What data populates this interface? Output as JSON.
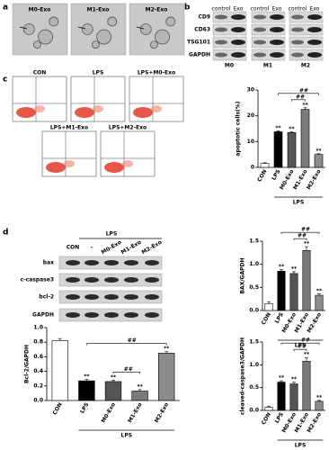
{
  "panels": {
    "a": {
      "letter": "a",
      "labels": [
        "M0-Exo",
        "M1-Exo",
        "M2-Exo"
      ]
    },
    "b": {
      "letter": "b",
      "header": [
        "control",
        "Exo"
      ],
      "rows": [
        "CD9",
        "CD63",
        "TSG101",
        "GAPDH"
      ],
      "groups": [
        "M0",
        "M1",
        "M2"
      ]
    },
    "c": {
      "letter": "c",
      "plots": [
        "CON",
        "LPS",
        "LPS+M0-Exo",
        "LPS+M1-Exo",
        "LPS+M2-Exo"
      ]
    },
    "d": {
      "letter": "d",
      "group": "LPS",
      "lanes": [
        "CON",
        "-",
        "M0-Exo",
        "M1-Exo",
        "M2-Exo"
      ],
      "rows": [
        "bax",
        "c-caspase3",
        "bcl-2",
        "GAPDH"
      ]
    }
  },
  "chart_data": [
    {
      "type": "bar",
      "y_label": "apoptotic cells(%)",
      "categories": [
        "CON",
        "LPS",
        "M0-Exo",
        "M1-Exo",
        "M2-Exo"
      ],
      "values": [
        1.5,
        13.8,
        13.5,
        22.5,
        5
      ],
      "errors": [
        0.3,
        0.4,
        0.3,
        0.6,
        0.3
      ],
      "colors": [
        "#ffffff",
        "#000000",
        "#555555",
        "#7a7a7a",
        "#8c8c8c"
      ],
      "significance": [
        null,
        "**",
        "**",
        "**",
        "**"
      ],
      "group_label": "LPS",
      "comparisons": [
        {
          "label": "##",
          "categories": [
            "LPS",
            "M2-Exo"
          ]
        },
        {
          "label": "##",
          "categories": [
            "M0-Exo",
            "M1-Exo"
          ]
        }
      ],
      "ylim": [
        0,
        30
      ],
      "yticks": [
        0,
        10,
        20,
        30
      ]
    },
    {
      "type": "bar",
      "y_label": "BAX/GAPDH",
      "categories": [
        "CON",
        "LPS",
        "M0-Exo",
        "M1-Exo",
        "M2-Exo"
      ],
      "values": [
        0.15,
        0.85,
        0.8,
        1.3,
        0.33
      ],
      "errors": [
        0.04,
        0.04,
        0.04,
        0.08,
        0.03
      ],
      "colors": [
        "#ffffff",
        "#000000",
        "#555555",
        "#7a7a7a",
        "#8c8c8c"
      ],
      "significance": [
        null,
        "**",
        "**",
        "**",
        "**"
      ],
      "group_label": "LPS",
      "comparisons": [
        {
          "label": "##",
          "categories": [
            "LPS",
            "M2-Exo"
          ]
        },
        {
          "label": "##",
          "categories": [
            "M0-Exo",
            "M1-Exo"
          ]
        }
      ],
      "ylim": [
        0,
        1.5
      ],
      "yticks": [
        {
          "value": 0,
          "label": "0.0"
        },
        0.5,
        {
          "value": 1,
          "label": "1.0"
        },
        1.5
      ]
    },
    {
      "type": "bar",
      "y_label": "Bcl-2/GAPDH",
      "categories": [
        "CON",
        "LPS",
        "M0-Exo",
        "M1-Exo",
        "M2-Exo"
      ],
      "values": [
        0.82,
        0.27,
        0.26,
        0.13,
        0.65
      ],
      "errors": [
        0.03,
        0.02,
        0.02,
        0.02,
        0.02
      ],
      "colors": [
        "#ffffff",
        "#000000",
        "#555555",
        "#7a7a7a",
        "#8c8c8c"
      ],
      "significance": [
        null,
        "**",
        "**",
        "**",
        "**"
      ],
      "group_label": "LPS",
      "comparisons": [
        {
          "label": "##",
          "categories": [
            "LPS",
            "M2-Exo"
          ]
        },
        {
          "label": "##",
          "categories": [
            "M0-Exo",
            "M1-Exo"
          ]
        }
      ],
      "ylim": [
        0,
        1
      ],
      "yticks": [
        {
          "value": 0,
          "label": "0.0"
        },
        0.2,
        0.4,
        0.6,
        0.8,
        {
          "value": 1,
          "label": "1.0"
        }
      ]
    },
    {
      "type": "bar",
      "y_label": "cleaved-caspase3/GAPDH",
      "categories": [
        "CON",
        "LPS",
        "M0-Exo",
        "M1-Exo",
        "M2-Exo"
      ],
      "values": [
        0.07,
        0.62,
        0.58,
        1.08,
        0.2
      ],
      "errors": [
        0.02,
        0.03,
        0.04,
        0.08,
        0.02
      ],
      "colors": [
        "#ffffff",
        "#000000",
        "#555555",
        "#7a7a7a",
        "#8c8c8c"
      ],
      "significance": [
        null,
        "**",
        "**",
        "**",
        "**"
      ],
      "group_label": "LPS",
      "comparisons": [
        {
          "label": "##",
          "categories": [
            "LPS",
            "M2-Exo"
          ]
        },
        {
          "label": "##",
          "categories": [
            "M0-Exo",
            "M1-Exo"
          ]
        }
      ],
      "ylim": [
        0,
        1.5
      ],
      "yticks": [
        {
          "value": 0,
          "label": "0.0"
        },
        0.5,
        {
          "value": 1,
          "label": "1.0"
        },
        1.5
      ]
    }
  ]
}
